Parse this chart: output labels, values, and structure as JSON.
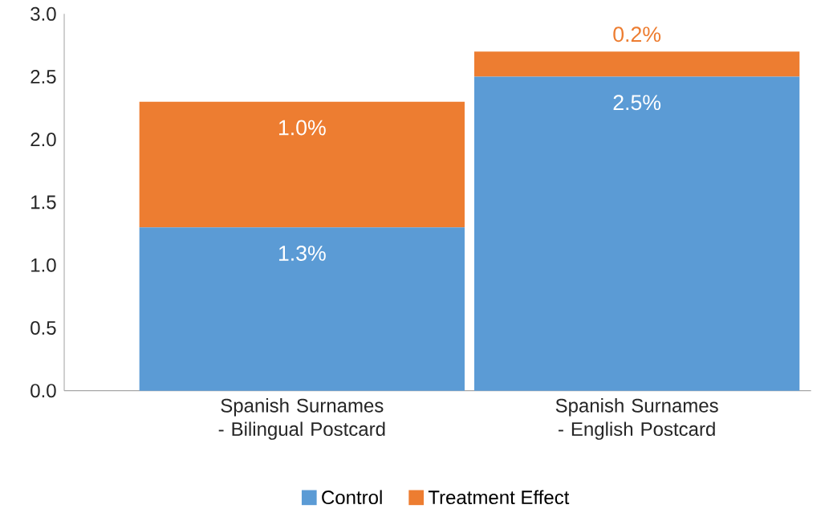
{
  "chart_data": {
    "type": "bar",
    "stacked": true,
    "categories": [
      "Spanish Surnames - Bilingual Postcard",
      "Spanish Surnames - English Postcard"
    ],
    "series": [
      {
        "name": "Control",
        "color": "#5b9bd5",
        "values": [
          1.3,
          2.5
        ],
        "value_labels": [
          "1.3%",
          "2.5%"
        ]
      },
      {
        "name": "Treatment Effect",
        "color": "#ed7d31",
        "values": [
          1.0,
          0.2
        ],
        "value_labels": [
          "1.0%",
          "0.2%"
        ]
      }
    ],
    "ylim": [
      0,
      3
    ],
    "yticks": [
      {
        "value": 0,
        "label": "0.0"
      },
      {
        "value": 0.5,
        "label": "0.5"
      },
      {
        "value": 1,
        "label": "1.0"
      },
      {
        "value": 1.5,
        "label": "1.5"
      },
      {
        "value": 2,
        "label": "2.0"
      },
      {
        "value": 2.5,
        "label": "2.5"
      },
      {
        "value": 3,
        "label": "3.0"
      }
    ],
    "grid": false,
    "legend": "bottom"
  }
}
